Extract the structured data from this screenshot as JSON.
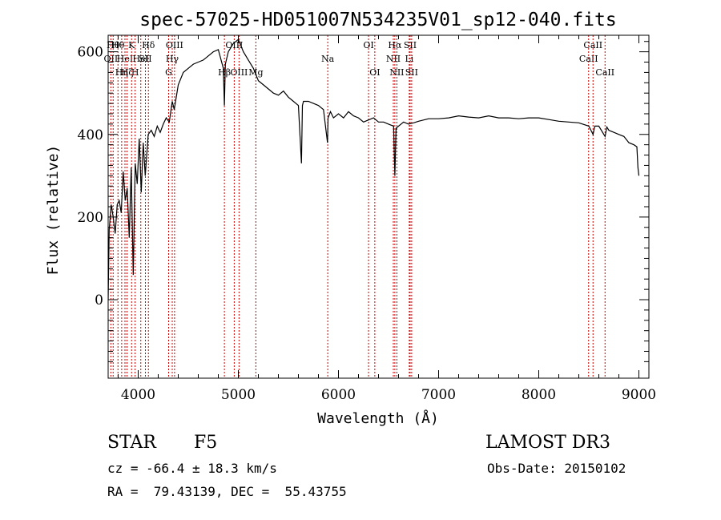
{
  "chart_data": {
    "type": "line",
    "title": "spec-57025-HD051007N534235V01_sp12-040.fits",
    "xlabel": "Wavelength (Å)",
    "ylabel": "Flux (relative)",
    "xlim": [
      3700,
      9100
    ],
    "ylim": [
      -190,
      640
    ],
    "xticks": [
      4000,
      5000,
      6000,
      7000,
      8000,
      9000
    ],
    "yticks": [
      0,
      200,
      400,
      600
    ],
    "series": [
      {
        "x": [
          3700,
          3710,
          3730,
          3750,
          3770,
          3790,
          3810,
          3830,
          3850,
          3870,
          3890,
          3910,
          3930,
          3950,
          3970,
          3990,
          4010,
          4030,
          4050,
          4070,
          4100,
          4130,
          4160,
          4190,
          4220,
          4250,
          4280,
          4310,
          4340,
          4360,
          4400,
          4450,
          4500,
          4550,
          4600,
          4650,
          4700,
          4750,
          4800,
          4850,
          4861,
          4870,
          4900,
          4950,
          5000,
          5050,
          5100,
          5150,
          5200,
          5250,
          5300,
          5350,
          5400,
          5450,
          5500,
          5550,
          5600,
          5630,
          5640,
          5650,
          5700,
          5750,
          5800,
          5850,
          5890,
          5896,
          5920,
          5950,
          6000,
          6050,
          6100,
          6150,
          6200,
          6250,
          6300,
          6350,
          6400,
          6450,
          6500,
          6550,
          6563,
          6575,
          6600,
          6650,
          6700,
          6750,
          6800,
          6900,
          7000,
          7100,
          7200,
          7300,
          7400,
          7500,
          7600,
          7700,
          7800,
          7900,
          8000,
          8100,
          8200,
          8300,
          8400,
          8500,
          8542,
          8560,
          8600,
          8662,
          8680,
          8700,
          8750,
          8800,
          8850,
          8900,
          8950,
          8980,
          8990,
          9000
        ],
        "y": [
          0,
          170,
          230,
          200,
          160,
          230,
          240,
          210,
          310,
          240,
          270,
          150,
          320,
          60,
          330,
          280,
          390,
          260,
          380,
          300,
          400,
          410,
          395,
          420,
          405,
          425,
          440,
          430,
          480,
          460,
          520,
          550,
          560,
          570,
          575,
          580,
          590,
          600,
          605,
          560,
          470,
          570,
          600,
          620,
          630,
          600,
          580,
          560,
          530,
          520,
          510,
          500,
          495,
          505,
          490,
          480,
          470,
          330,
          470,
          480,
          480,
          475,
          470,
          460,
          380,
          440,
          455,
          440,
          450,
          440,
          455,
          445,
          440,
          430,
          435,
          440,
          430,
          430,
          425,
          420,
          300,
          415,
          420,
          430,
          425,
          428,
          432,
          438,
          438,
          440,
          445,
          442,
          440,
          445,
          440,
          440,
          438,
          440,
          440,
          436,
          432,
          430,
          428,
          420,
          400,
          420,
          420,
          395,
          418,
          410,
          405,
          400,
          395,
          380,
          375,
          370,
          320,
          300
        ]
      }
    ],
    "vlines": [
      {
        "x": 3727,
        "label": "OII",
        "row": 1
      },
      {
        "x": 3750,
        "label": "Hθ",
        "row": 0
      },
      {
        "x": 3798,
        "label": "Hθ",
        "row": 0
      },
      {
        "x": 3835,
        "label": "Hη",
        "row": 2
      },
      {
        "x": 3868,
        "label": "HeI",
        "row": 1
      },
      {
        "x": 3889,
        "label": "Hζ",
        "row": 2
      },
      {
        "x": 3934,
        "label": "K",
        "row": 0
      },
      {
        "x": 3969,
        "label": "H",
        "row": 2
      },
      {
        "x": 4026,
        "label": "HeI",
        "row": 1
      },
      {
        "x": 4072,
        "label": "SII",
        "row": 1
      },
      {
        "x": 4102,
        "label": "Hδ",
        "row": 0
      },
      {
        "x": 4304,
        "label": "G",
        "row": 2
      },
      {
        "x": 4340,
        "label": "Hγ",
        "row": 1
      },
      {
        "x": 4363,
        "label": "OIII",
        "row": 0
      },
      {
        "x": 4861,
        "label": "Hβ",
        "row": 2
      },
      {
        "x": 4959,
        "label": "OIII",
        "row": 0
      },
      {
        "x": 5007,
        "label": "OIII",
        "row": 2
      },
      {
        "x": 5175,
        "label": "Mg",
        "row": 2
      },
      {
        "x": 5893,
        "label": "Na",
        "row": 1
      },
      {
        "x": 6300,
        "label": "OI",
        "row": 0
      },
      {
        "x": 6363,
        "label": "OI",
        "row": 2
      },
      {
        "x": 6548,
        "label": "NII",
        "row": 1
      },
      {
        "x": 6563,
        "label": "Hα",
        "row": 0
      },
      {
        "x": 6583,
        "label": "NII",
        "row": 2
      },
      {
        "x": 6707,
        "label": "Li",
        "row": 1
      },
      {
        "x": 6716,
        "label": "SII",
        "row": 0
      },
      {
        "x": 6731,
        "label": "SII",
        "row": 2
      },
      {
        "x": 8498,
        "label": "CaII",
        "row": 1
      },
      {
        "x": 8542,
        "label": "CaII",
        "row": 0
      },
      {
        "x": 8662,
        "label": "CaII",
        "row": 2
      }
    ]
  },
  "info": {
    "object_class": "STAR",
    "subclass": "F5",
    "survey": "LAMOST DR3",
    "redshift": "cz = -66.4 ± 18.3 km/s",
    "obs_date": "Obs-Date: 20150102",
    "coords": "RA =  79.43139, DEC =  55.43755"
  },
  "colors": {
    "spectrum": "#000000",
    "line_marker": "#cc0000"
  }
}
